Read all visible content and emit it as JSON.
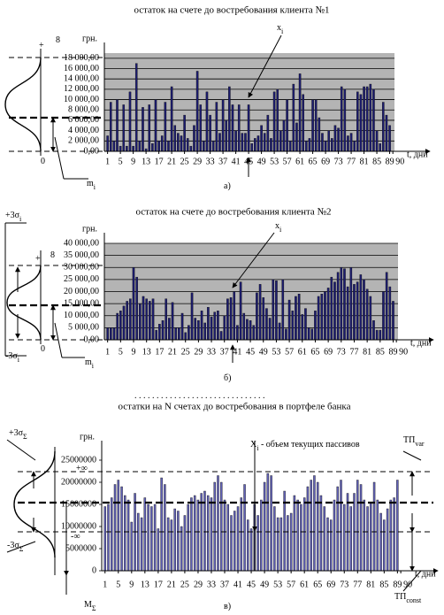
{
  "chart_data": [
    {
      "type": "bar",
      "title": "остаток на счете до востребования клиента №1",
      "y_label": "грн.",
      "x_label": "t, дни",
      "color": "#1c1c70",
      "background": "#b4b4b4",
      "grid": true,
      "x": [
        1,
        2,
        3,
        4,
        5,
        6,
        7,
        8,
        9,
        10,
        11,
        12,
        13,
        14,
        15,
        16,
        17,
        18,
        19,
        20,
        21,
        22,
        23,
        24,
        25,
        26,
        27,
        28,
        29,
        30,
        31,
        32,
        33,
        34,
        35,
        36,
        37,
        38,
        39,
        40,
        41,
        42,
        43,
        44,
        45,
        46,
        47,
        48,
        49,
        50,
        51,
        52,
        53,
        54,
        55,
        56,
        57,
        58,
        59,
        60,
        61,
        62,
        63,
        64,
        65,
        66,
        67,
        68,
        69,
        70,
        71,
        72,
        73,
        74,
        75,
        76,
        77,
        78,
        79,
        80,
        81,
        82,
        83,
        84,
        85,
        86,
        87,
        88,
        89
      ],
      "values": [
        3000,
        9500,
        2000,
        10000,
        1000,
        9000,
        1000,
        11500,
        1000,
        17000,
        2000,
        8500,
        500,
        9000,
        1500,
        10000,
        2000,
        3000,
        9500,
        2000,
        12500,
        5000,
        3500,
        3000,
        7000,
        2500,
        1000,
        5000,
        15500,
        9000,
        2000,
        11500,
        7000,
        2000,
        9500,
        3500,
        10000,
        6000,
        12500,
        9000,
        4000,
        9000,
        3500,
        3500,
        9000,
        1500,
        2500,
        3000,
        5000,
        3500,
        7000,
        2500,
        11500,
        12000,
        4000,
        6000,
        10000,
        2000,
        13000,
        5500,
        15000,
        11000,
        2000,
        2500,
        10000,
        10000,
        6500,
        3500,
        2000,
        4000,
        2500,
        5000,
        4500,
        12500,
        12000,
        3000,
        3500,
        2000,
        11500,
        11000,
        12500,
        12500,
        13000,
        12000,
        4000,
        1500,
        9500,
        7000,
        5000
      ],
      "xlim": [
        0,
        90.5
      ],
      "xticks": [
        1,
        5,
        9,
        13,
        17,
        21,
        25,
        29,
        33,
        37,
        41,
        45,
        49,
        53,
        57,
        61,
        65,
        69,
        73,
        77,
        81,
        85,
        89,
        90
      ],
      "ylim": [
        0,
        19000
      ],
      "yticks": [
        {
          "value": 0,
          "label": "0,00"
        },
        {
          "value": 2000,
          "label": "2 000,00"
        },
        {
          "value": 4000,
          "label": "4 000,00"
        },
        {
          "value": 6000,
          "label": "6 000,00"
        },
        {
          "value": 8000,
          "label": "8 000,00"
        },
        {
          "value": 10000,
          "label": "10 000,00"
        },
        {
          "value": 12000,
          "label": "12 000,00"
        },
        {
          "value": 14000,
          "label": "14 000,00"
        },
        {
          "value": 16000,
          "label": "16 000,00"
        },
        {
          "value": 18000,
          "label": "18 000,00"
        }
      ],
      "annotations": [
        {
          "text": "x",
          "sub": "i"
        },
        {
          "text": "m",
          "sub": "i"
        },
        {
          "text": "+"
        },
        {
          "text": "8"
        },
        {
          "text": "0"
        },
        {
          "text": "а)"
        }
      ]
    },
    {
      "type": "bar",
      "title": "остаток на счете до востребования клиента №2",
      "y_label": "грн.",
      "x_label": "t, дни",
      "color": "#1c1c70",
      "background": "#b4b4b4",
      "grid": true,
      "x": [
        1,
        2,
        3,
        4,
        5,
        6,
        7,
        8,
        9,
        10,
        11,
        12,
        13,
        14,
        15,
        16,
        17,
        18,
        19,
        20,
        21,
        22,
        23,
        24,
        25,
        26,
        27,
        28,
        29,
        30,
        31,
        32,
        33,
        34,
        35,
        36,
        37,
        38,
        39,
        40,
        41,
        42,
        43,
        44,
        45,
        46,
        47,
        48,
        49,
        50,
        51,
        52,
        53,
        54,
        55,
        56,
        57,
        58,
        59,
        60,
        61,
        62,
        63,
        64,
        65,
        66,
        67,
        68,
        69,
        70,
        71,
        72,
        73,
        74,
        75,
        76,
        77,
        78,
        79,
        80,
        81,
        82,
        83,
        84,
        85,
        86,
        87,
        88,
        89
      ],
      "values": [
        5000,
        5000,
        5000,
        11000,
        12000,
        14000,
        16000,
        17000,
        30000,
        26000,
        15000,
        18000,
        17000,
        16000,
        17000,
        4000,
        6500,
        8000,
        17000,
        9000,
        15500,
        5000,
        5000,
        11000,
        3000,
        6000,
        19500,
        9000,
        8000,
        12000,
        7000,
        13500,
        9500,
        11500,
        12000,
        3500,
        10000,
        17000,
        17500,
        20000,
        6000,
        24000,
        11000,
        8500,
        8000,
        6000,
        19500,
        23000,
        17500,
        13000,
        9000,
        25000,
        24500,
        7000,
        25000,
        4500,
        16500,
        12000,
        18000,
        19000,
        10500,
        13000,
        5000,
        4500,
        12000,
        18000,
        19000,
        20000,
        21500,
        26000,
        24000,
        28000,
        30000,
        29500,
        22000,
        30000,
        23000,
        24000,
        27000,
        25000,
        21000,
        18000,
        8000,
        4000,
        4000,
        20000,
        28000,
        22000,
        16000
      ],
      "xlim": [
        0,
        90.5
      ],
      "xticks": [
        1,
        5,
        9,
        13,
        17,
        21,
        25,
        29,
        33,
        37,
        41,
        45,
        49,
        53,
        57,
        61,
        65,
        69,
        73,
        77,
        81,
        85,
        89,
        90
      ],
      "ylim": [
        0,
        40000
      ],
      "yticks": [
        {
          "value": 0,
          "label": "0,00"
        },
        {
          "value": 5000,
          "label": "5 000,00"
        },
        {
          "value": 10000,
          "label": "10 000,00"
        },
        {
          "value": 15000,
          "label": "15 000,00"
        },
        {
          "value": 20000,
          "label": "20 000,00"
        },
        {
          "value": 25000,
          "label": "25 000,00"
        },
        {
          "value": 30000,
          "label": "30 000,00"
        },
        {
          "value": 35000,
          "label": "35 000,00"
        },
        {
          "value": 40000,
          "label": "40 000,00"
        }
      ],
      "annotations": [
        {
          "text": "x",
          "sub": "i"
        },
        {
          "text": "m",
          "sub": "i"
        },
        {
          "text": "+3σ",
          "sub": "i"
        },
        {
          "text": "-3σ",
          "sub": "i"
        },
        {
          "text": "+"
        },
        {
          "text": "8"
        },
        {
          "text": "0"
        },
        {
          "text": "б)"
        }
      ]
    },
    {
      "type": "bar",
      "title": "остатки  на  N счетах до востребования в портфеле банка",
      "y_label": "грн.",
      "x_label": "t, дни",
      "color": "#6262b8",
      "background": "#ffffff",
      "grid": false,
      "x": [
        1,
        2,
        3,
        4,
        5,
        6,
        7,
        8,
        9,
        10,
        11,
        12,
        13,
        14,
        15,
        16,
        17,
        18,
        19,
        20,
        21,
        22,
        23,
        24,
        25,
        26,
        27,
        28,
        29,
        30,
        31,
        32,
        33,
        34,
        35,
        36,
        37,
        38,
        39,
        40,
        41,
        42,
        43,
        44,
        45,
        46,
        47,
        48,
        49,
        50,
        51,
        52,
        53,
        54,
        55,
        56,
        57,
        58,
        59,
        60,
        61,
        62,
        63,
        64,
        65,
        66,
        67,
        68,
        69,
        70,
        71,
        72,
        73,
        74,
        75,
        76,
        77,
        78,
        79,
        80,
        81,
        82,
        83,
        84,
        85,
        86,
        87,
        88,
        89
      ],
      "values": [
        14500000,
        15000000,
        16500000,
        19500000,
        20500000,
        19000000,
        17000000,
        16000000,
        11000000,
        17500000,
        13000000,
        12000000,
        16500000,
        15000000,
        14500000,
        15000000,
        9500000,
        21000000,
        19500000,
        12000000,
        11500000,
        14000000,
        13500000,
        10000000,
        12500000,
        15000000,
        16500000,
        17000000,
        16000000,
        17500000,
        18000000,
        17000000,
        16500000,
        20000000,
        21500000,
        20000000,
        16000000,
        15000000,
        12500000,
        13500000,
        14500000,
        16500000,
        19500000,
        11500000,
        9500000,
        15000000,
        12500000,
        16000000,
        20000000,
        22000000,
        21500000,
        14500000,
        12000000,
        12000000,
        18000000,
        12500000,
        13000000,
        17000000,
        16000000,
        15000000,
        16500000,
        19000000,
        20500000,
        21500000,
        20000000,
        17000000,
        14500000,
        12000000,
        11500000,
        16000000,
        19000000,
        20500000,
        15000000,
        17500000,
        14500000,
        17500000,
        20500000,
        19500000,
        16000000,
        14500000,
        15500000,
        20000000,
        16000000,
        13000000,
        11500000,
        14000000,
        16000000,
        16500000,
        20500000
      ],
      "xlim": [
        0,
        90.5
      ],
      "xticks": [
        1,
        5,
        9,
        13,
        17,
        21,
        25,
        29,
        33,
        37,
        41,
        45,
        49,
        53,
        57,
        61,
        65,
        69,
        73,
        77,
        81,
        85,
        89,
        90
      ],
      "ylim": [
        0,
        27000000
      ],
      "yticks": [
        0,
        5000000,
        10000000,
        15000000,
        20000000,
        25000000
      ],
      "annotations": [
        {
          "text": ". . . . . . . . . . . . . . . . . . . . . . . . . . . . . ."
        },
        {
          "text": "X",
          "sub": "i",
          "after": " -  объем текущих пассивов"
        },
        {
          "text": "ТП",
          "sub": "var"
        },
        {
          "text": "ТП",
          "sub": "const"
        },
        {
          "text": "+3σ",
          "sub": "Σ"
        },
        {
          "text": "-3σ",
          "sub": "Σ"
        },
        {
          "text": "+∞"
        },
        {
          "text": "-∞"
        },
        {
          "text": "M",
          "sub": "Σ"
        },
        {
          "text": "в)"
        }
      ]
    }
  ]
}
